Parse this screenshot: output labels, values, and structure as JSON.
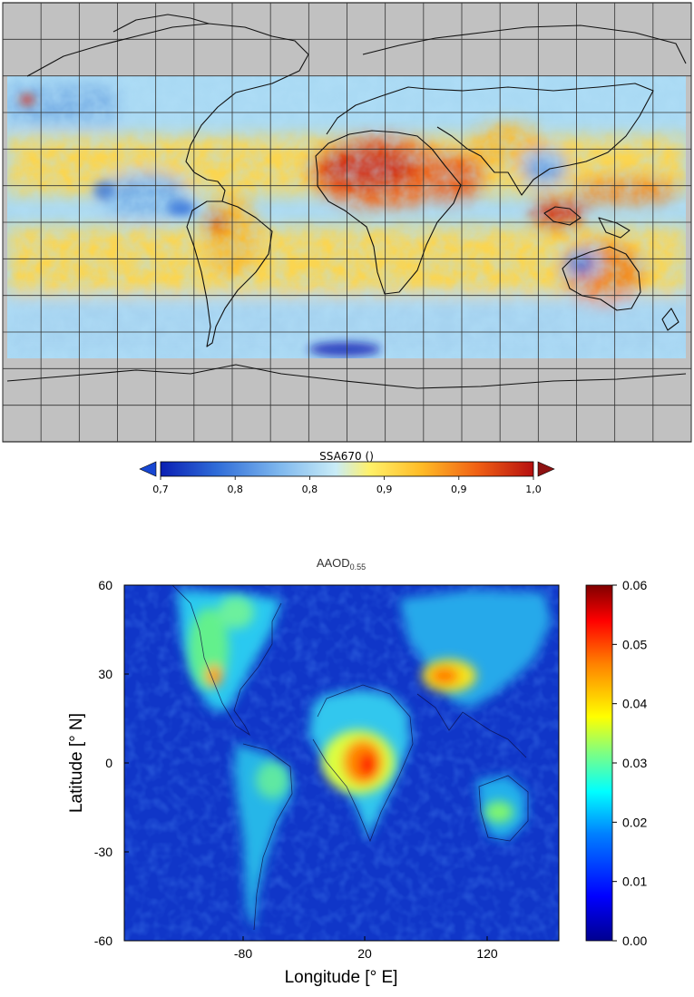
{
  "top_panel": {
    "colorbar_title": "SSA670 ()",
    "tick_labels": [
      "0,7",
      "0,8",
      "0,8",
      "0,9",
      "0,9",
      "1,0"
    ]
  },
  "bottom_panel": {
    "title_main": "AAOD",
    "title_sub": "0.55",
    "ylabel": "Latitude [° N]",
    "xlabel": "Longitude [° E]",
    "y_ticks": [
      "60",
      "30",
      "0",
      "-30",
      "-60"
    ],
    "x_ticks": [
      "-80",
      "20",
      "120"
    ],
    "colorbar_ticks": [
      "0.06",
      "0.05",
      "0.04",
      "0.03",
      "0.02",
      "0.01",
      "0.00"
    ]
  },
  "colors": {
    "ssa_scale": [
      "#0a1fb3",
      "#2f6cd8",
      "#7fb8ee",
      "#c9ecf7",
      "#fff16a",
      "#ffbb26",
      "#f06014",
      "#b60f0f"
    ],
    "aaod_scale": [
      "#00008f",
      "#0000ff",
      "#0080ff",
      "#00ffff",
      "#80ff80",
      "#ffff00",
      "#ff8000",
      "#ff0000",
      "#800000"
    ],
    "masked_gray": "#c1c1c1"
  },
  "chart_data": [
    {
      "type": "heatmap",
      "variable": "SSA670",
      "colorbar": {
        "label": "SSA670 ()",
        "range": [
          0.7,
          1.0
        ],
        "ticks": [
          "0,7",
          "0,8",
          "0,8",
          "0,9",
          "0,9",
          "1,0"
        ],
        "extend": "both"
      },
      "grid": true,
      "data_coverage_lat": [
        -55,
        67
      ],
      "notable_high_regions": [
        "Sahara",
        "Arabian Peninsula",
        "Maritime Continent",
        "Australia"
      ],
      "notable_low_regions": [
        "tropical ocean belts",
        "Southern Ocean"
      ]
    },
    {
      "type": "heatmap",
      "variable": "AAOD 0.55",
      "title": "AAOD0.55",
      "xlabel": "Longitude [° E]",
      "ylabel": "Latitude [° N]",
      "xticks": [
        -80,
        20,
        120
      ],
      "yticks": [
        60,
        30,
        0,
        -30,
        -60
      ],
      "ylim": [
        -60,
        60
      ],
      "colorbar": {
        "range": [
          0.0,
          0.06
        ],
        "ticks": [
          0.0,
          0.01,
          0.02,
          0.03,
          0.04,
          0.05,
          0.06
        ]
      },
      "hotspots": [
        {
          "region": "Central Africa",
          "approx_value": 0.055
        },
        {
          "region": "South Asia",
          "approx_value": 0.045
        },
        {
          "region": "Eastern USA",
          "approx_value": 0.04
        }
      ]
    }
  ]
}
